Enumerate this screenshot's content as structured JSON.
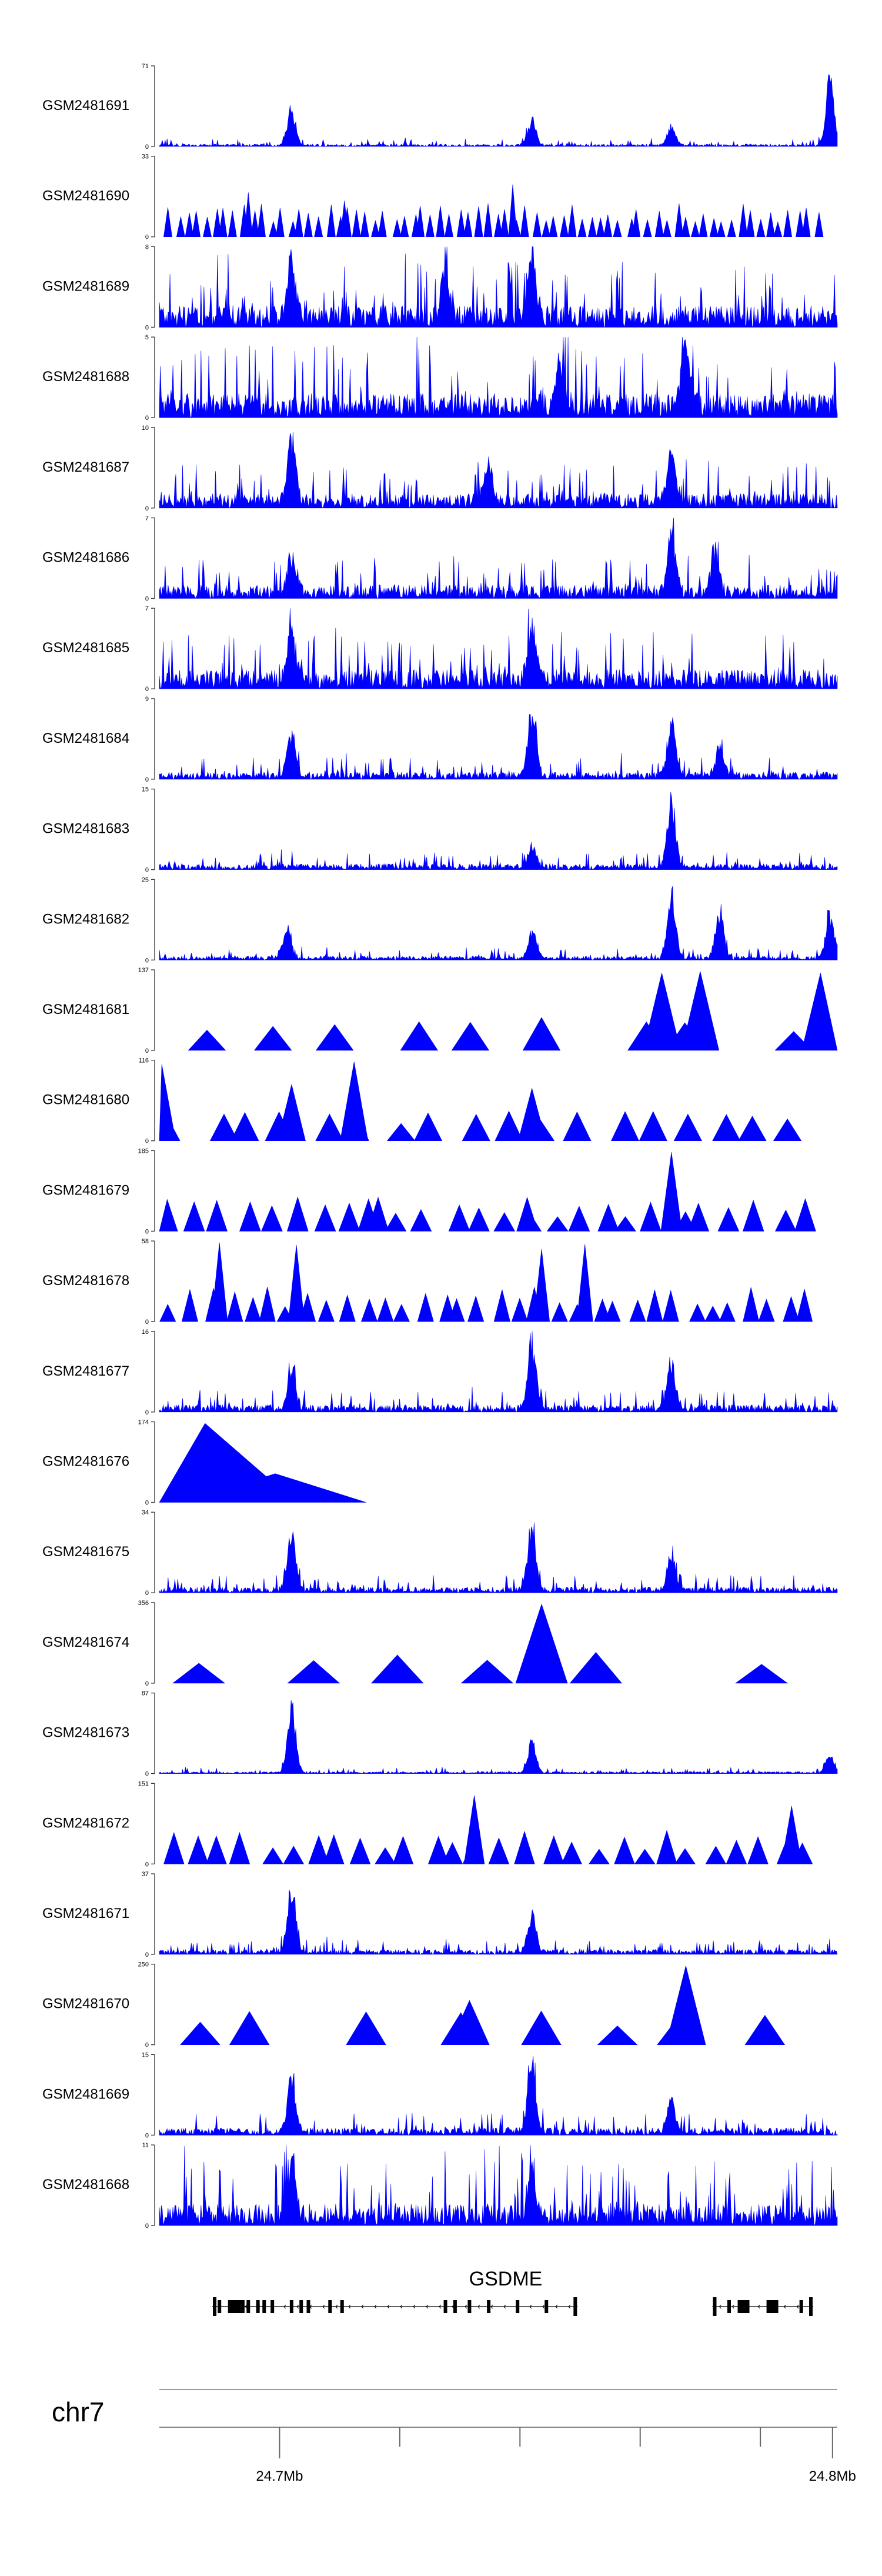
{
  "chart_data": {
    "type": "area",
    "title": "",
    "genome_browser": true,
    "chromosome": "chr7",
    "region_mb": [
      24.675,
      24.816
    ],
    "axis_ticks": [
      {
        "mb": 24.7,
        "label": "24.7Mb"
      },
      {
        "mb": 24.725,
        "label": ""
      },
      {
        "mb": 24.75,
        "label": ""
      },
      {
        "mb": 24.775,
        "label": ""
      },
      {
        "mb": 24.8,
        "label": ""
      },
      {
        "mb": 24.815,
        "label": "24.8Mb"
      }
    ],
    "gene": {
      "name": "GSDME",
      "strand": "-",
      "clusters": [
        {
          "start": 24.686,
          "end": 24.762,
          "exons": [
            24.6865,
            24.6875,
            24.6905,
            24.6915,
            24.6935,
            24.6955,
            24.6968,
            24.6985,
            24.7025,
            24.7045,
            24.706,
            24.7105,
            24.713,
            24.7345,
            24.7365,
            24.7395,
            24.7435,
            24.7495,
            24.7555,
            24.7615
          ]
        },
        {
          "start": 24.79,
          "end": 24.811,
          "exons": [
            24.7905,
            24.7935,
            24.7965,
            24.8025,
            24.8085,
            24.8105
          ]
        }
      ]
    },
    "series": [
      {
        "name": "GSM2481691",
        "ymax": 71,
        "profile": "dense",
        "noise": 0.05,
        "peaks": [
          [
            24.7025,
            0.52
          ],
          [
            24.7525,
            0.36
          ],
          [
            24.7815,
            0.27
          ],
          [
            24.8145,
            0.97
          ]
        ]
      },
      {
        "name": "GSM2481690",
        "ymax": 33,
        "profile": "sparse",
        "density": 70,
        "peaks": [
          [
            24.6935,
            0.55
          ],
          [
            24.7485,
            0.65
          ],
          [
            24.7135,
            0.45
          ]
        ]
      },
      {
        "name": "GSM2481689",
        "ymax": 8,
        "profile": "dense",
        "noise": 0.45,
        "peaks": [
          [
            24.7025,
            0.85
          ],
          [
            24.7345,
            0.8
          ],
          [
            24.7525,
            0.9
          ]
        ]
      },
      {
        "name": "GSM2481688",
        "ymax": 5,
        "profile": "dense",
        "noise": 0.5,
        "peaks": [
          [
            24.7845,
            0.95
          ],
          [
            24.7585,
            0.7
          ]
        ]
      },
      {
        "name": "GSM2481687",
        "ymax": 10,
        "profile": "dense",
        "noise": 0.3,
        "peaks": [
          [
            24.7025,
            0.93
          ],
          [
            24.7815,
            0.75
          ],
          [
            24.7435,
            0.55
          ]
        ]
      },
      {
        "name": "GSM2481686",
        "ymax": 7,
        "profile": "dense",
        "noise": 0.28,
        "peaks": [
          [
            24.7025,
            0.55
          ],
          [
            24.7815,
            0.9
          ],
          [
            24.7905,
            0.62
          ]
        ]
      },
      {
        "name": "GSM2481685",
        "ymax": 7,
        "profile": "dense",
        "noise": 0.4,
        "peaks": [
          [
            24.7525,
            0.92
          ],
          [
            24.7025,
            0.7
          ]
        ]
      },
      {
        "name": "GSM2481684",
        "ymax": 9,
        "profile": "dense",
        "noise": 0.15,
        "peaks": [
          [
            24.7025,
            0.65
          ],
          [
            24.7525,
            0.95
          ],
          [
            24.7815,
            0.85
          ],
          [
            24.7915,
            0.45
          ]
        ]
      },
      {
        "name": "GSM2481683",
        "ymax": 15,
        "profile": "dense",
        "noise": 0.12,
        "peaks": [
          [
            24.7815,
            0.95
          ],
          [
            24.7525,
            0.3
          ]
        ]
      },
      {
        "name": "GSM2481682",
        "ymax": 25,
        "profile": "dense",
        "noise": 0.08,
        "peaks": [
          [
            24.7015,
            0.42
          ],
          [
            24.7525,
            0.4
          ],
          [
            24.7815,
            0.95
          ],
          [
            24.7915,
            0.7
          ],
          [
            24.8145,
            0.65
          ]
        ]
      },
      {
        "name": "GSM2481681",
        "ymax": 137,
        "profile": "sparse",
        "density": 9,
        "peaks": [
          [
            24.7795,
            0.96
          ],
          [
            24.7875,
            0.98
          ],
          [
            24.8125,
            0.96
          ]
        ]
      },
      {
        "name": "GSM2481680",
        "ymax": 116,
        "profile": "sparse",
        "density": 18,
        "peaks": [
          [
            24.6755,
            0.95
          ],
          [
            24.7025,
            0.7
          ],
          [
            24.7155,
            0.98
          ],
          [
            24.7525,
            0.65
          ]
        ]
      },
      {
        "name": "GSM2481679",
        "ymax": 185,
        "profile": "sparse",
        "density": 26,
        "peaks": [
          [
            24.7815,
            0.98
          ],
          [
            24.7515,
            0.42
          ],
          [
            24.7185,
            0.4
          ]
        ]
      },
      {
        "name": "GSM2481678",
        "ymax": 58,
        "profile": "sparse",
        "density": 34,
        "peaks": [
          [
            24.6875,
            0.98
          ],
          [
            24.7035,
            0.95
          ],
          [
            24.7545,
            0.9
          ],
          [
            24.7635,
            0.96
          ]
        ]
      },
      {
        "name": "GSM2481677",
        "ymax": 16,
        "profile": "dense",
        "noise": 0.15,
        "peaks": [
          [
            24.7025,
            0.55
          ],
          [
            24.7525,
            0.98
          ],
          [
            24.7815,
            0.7
          ]
        ]
      },
      {
        "name": "GSM2481676",
        "ymax": 174,
        "profile": "sparse",
        "density": 1,
        "peaks": [
          [
            24.6845,
            0.98
          ]
        ]
      },
      {
        "name": "GSM2481675",
        "ymax": 34,
        "profile": "dense",
        "noise": 0.12,
        "peaks": [
          [
            24.7025,
            0.82
          ],
          [
            24.7525,
            0.97
          ],
          [
            24.7815,
            0.55
          ]
        ]
      },
      {
        "name": "GSM2481674",
        "ymax": 356,
        "profile": "sparse",
        "density": 5,
        "peaks": [
          [
            24.7545,
            0.98
          ],
          [
            24.7245,
            0.35
          ]
        ]
      },
      {
        "name": "GSM2481673",
        "ymax": 87,
        "profile": "dense",
        "noise": 0.04,
        "peaks": [
          [
            24.7025,
            0.97
          ],
          [
            24.7525,
            0.45
          ],
          [
            24.8145,
            0.25
          ]
        ]
      },
      {
        "name": "GSM2481672",
        "ymax": 151,
        "profile": "sparse",
        "density": 28,
        "peaks": [
          [
            24.7405,
            0.85
          ],
          [
            24.8065,
            0.72
          ]
        ]
      },
      {
        "name": "GSM2481671",
        "ymax": 37,
        "profile": "dense",
        "noise": 0.1,
        "peaks": [
          [
            24.7025,
            0.98
          ],
          [
            24.7525,
            0.55
          ]
        ]
      },
      {
        "name": "GSM2481670",
        "ymax": 250,
        "profile": "sparse",
        "density": 8,
        "peaks": [
          [
            24.7845,
            0.98
          ],
          [
            24.7395,
            0.55
          ]
        ]
      },
      {
        "name": "GSM2481669",
        "ymax": 15,
        "profile": "dense",
        "noise": 0.15,
        "peaks": [
          [
            24.7025,
            0.72
          ],
          [
            24.7525,
            0.97
          ],
          [
            24.7815,
            0.45
          ]
        ]
      },
      {
        "name": "GSM2481668",
        "ymax": 11,
        "profile": "dense",
        "noise": 0.45,
        "peaks": [
          [
            24.7025,
            0.8
          ],
          [
            24.7525,
            0.75
          ]
        ]
      }
    ]
  }
}
